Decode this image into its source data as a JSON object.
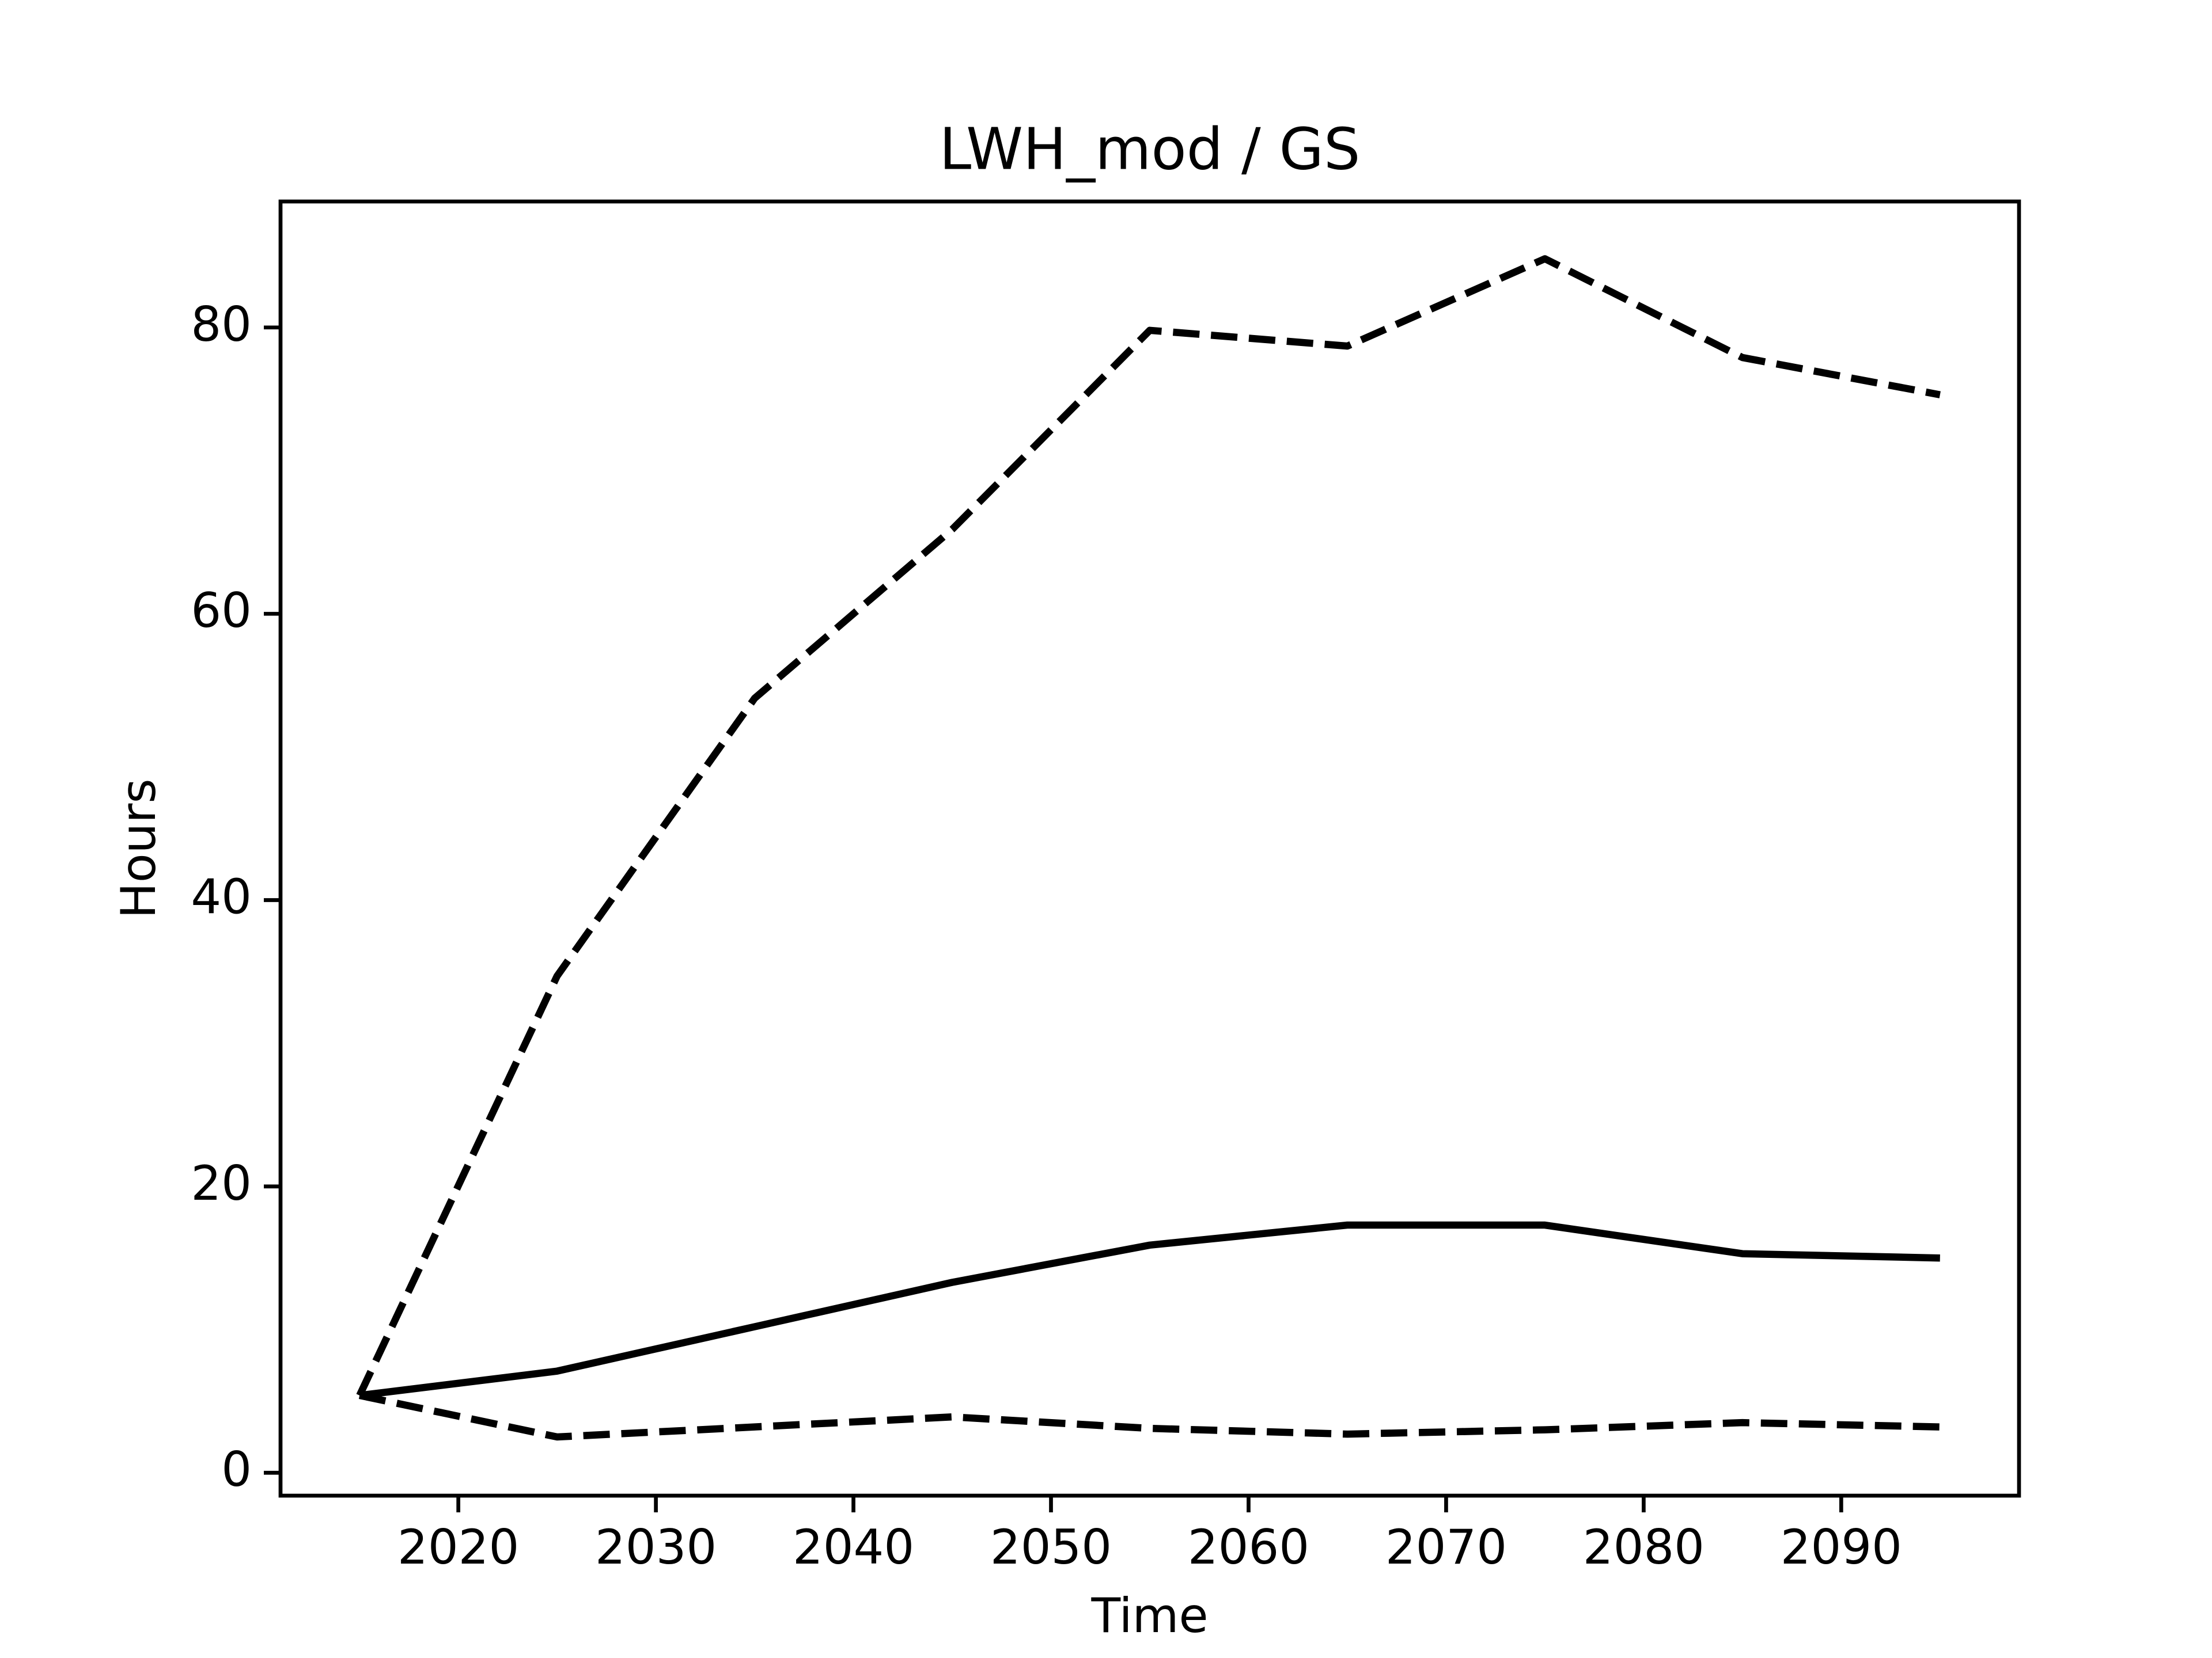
{
  "chart_data": {
    "type": "line",
    "title": "LWH_mod / GS",
    "x_label": "Time",
    "y_label": "Hours",
    "x": [
      2015,
      2025,
      2035,
      2045,
      2055,
      2065,
      2075,
      2085,
      2095
    ],
    "series": [
      {
        "color": "#000000",
        "linestyle": "solid",
        "values": [
          5.4,
          7.1,
          10.2,
          13.3,
          15.9,
          17.3,
          17.3,
          15.3,
          15.0
        ]
      },
      {
        "color": "#000000",
        "linestyle": "dashed",
        "values": [
          5.4,
          34.7,
          54.1,
          65.9,
          79.8,
          78.7,
          84.8,
          77.9,
          75.3
        ]
      },
      {
        "color": "#000000",
        "linestyle": "dashed",
        "values": [
          5.4,
          2.5,
          3.2,
          3.9,
          3.1,
          2.7,
          3.0,
          3.5,
          3.2
        ]
      }
    ],
    "xlim": [
      2011,
      2099
    ],
    "xticks": [
      2020,
      2030,
      2040,
      2050,
      2060,
      2070,
      2080,
      2090
    ],
    "ylim": [
      -1.6,
      88.8
    ],
    "yticks": [
      0,
      20,
      40,
      60,
      80
    ],
    "grid": false
  }
}
